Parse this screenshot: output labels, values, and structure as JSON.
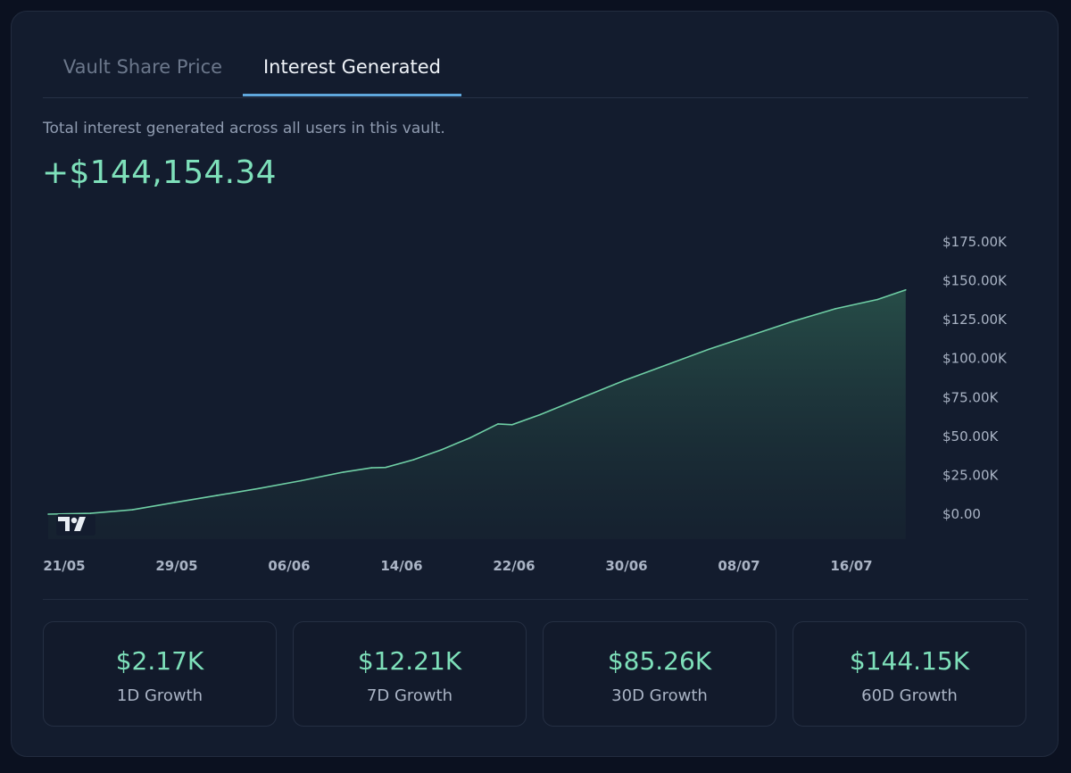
{
  "tabs": [
    {
      "label": "Vault Share Price",
      "active": false
    },
    {
      "label": "Interest Generated",
      "active": true
    }
  ],
  "description": "Total interest generated across all users in this vault.",
  "total": "+$144,154.34",
  "colors": {
    "accent": "#7ee0ba",
    "tab_underline": "#5fa7dc",
    "line": "#6fcfa5"
  },
  "chart_data": {
    "type": "area",
    "xlabel": "",
    "ylabel": "",
    "x_ticks": [
      "21/05",
      "29/05",
      "06/06",
      "14/06",
      "22/06",
      "30/06",
      "08/07",
      "16/07"
    ],
    "y_ticks": [
      "$0.00",
      "$25.00K",
      "$50.00K",
      "$75.00K",
      "$100.00K",
      "$125.00K",
      "$150.00K",
      "$175.00K"
    ],
    "ylim": [
      0,
      175000
    ],
    "x": [
      "2024-05-21",
      "2024-05-24",
      "2024-05-27",
      "2024-05-30",
      "2024-06-02",
      "2024-06-05",
      "2024-06-08",
      "2024-06-11",
      "2024-06-13",
      "2024-06-14",
      "2024-06-16",
      "2024-06-18",
      "2024-06-20",
      "2024-06-22",
      "2024-06-23",
      "2024-06-25",
      "2024-06-28",
      "2024-07-01",
      "2024-07-04",
      "2024-07-07",
      "2024-07-10",
      "2024-07-13",
      "2024-07-16",
      "2024-07-19",
      "2024-07-21"
    ],
    "series": [
      {
        "values": [
          0,
          500,
          2800,
          7500,
          12000,
          16500,
          21500,
          27000,
          29800,
          30000,
          35000,
          41500,
          49000,
          58000,
          57500,
          64000,
          75000,
          86000,
          96000,
          106000,
          115000,
          124000,
          132000,
          138000,
          144154
        ]
      }
    ],
    "grid": false,
    "logo": "tradingview-logo-icon"
  },
  "stats": [
    {
      "value": "$2.17K",
      "label": "1D Growth"
    },
    {
      "value": "$12.21K",
      "label": "7D Growth"
    },
    {
      "value": "$85.26K",
      "label": "30D Growth"
    },
    {
      "value": "$144.15K",
      "label": "60D Growth"
    }
  ]
}
